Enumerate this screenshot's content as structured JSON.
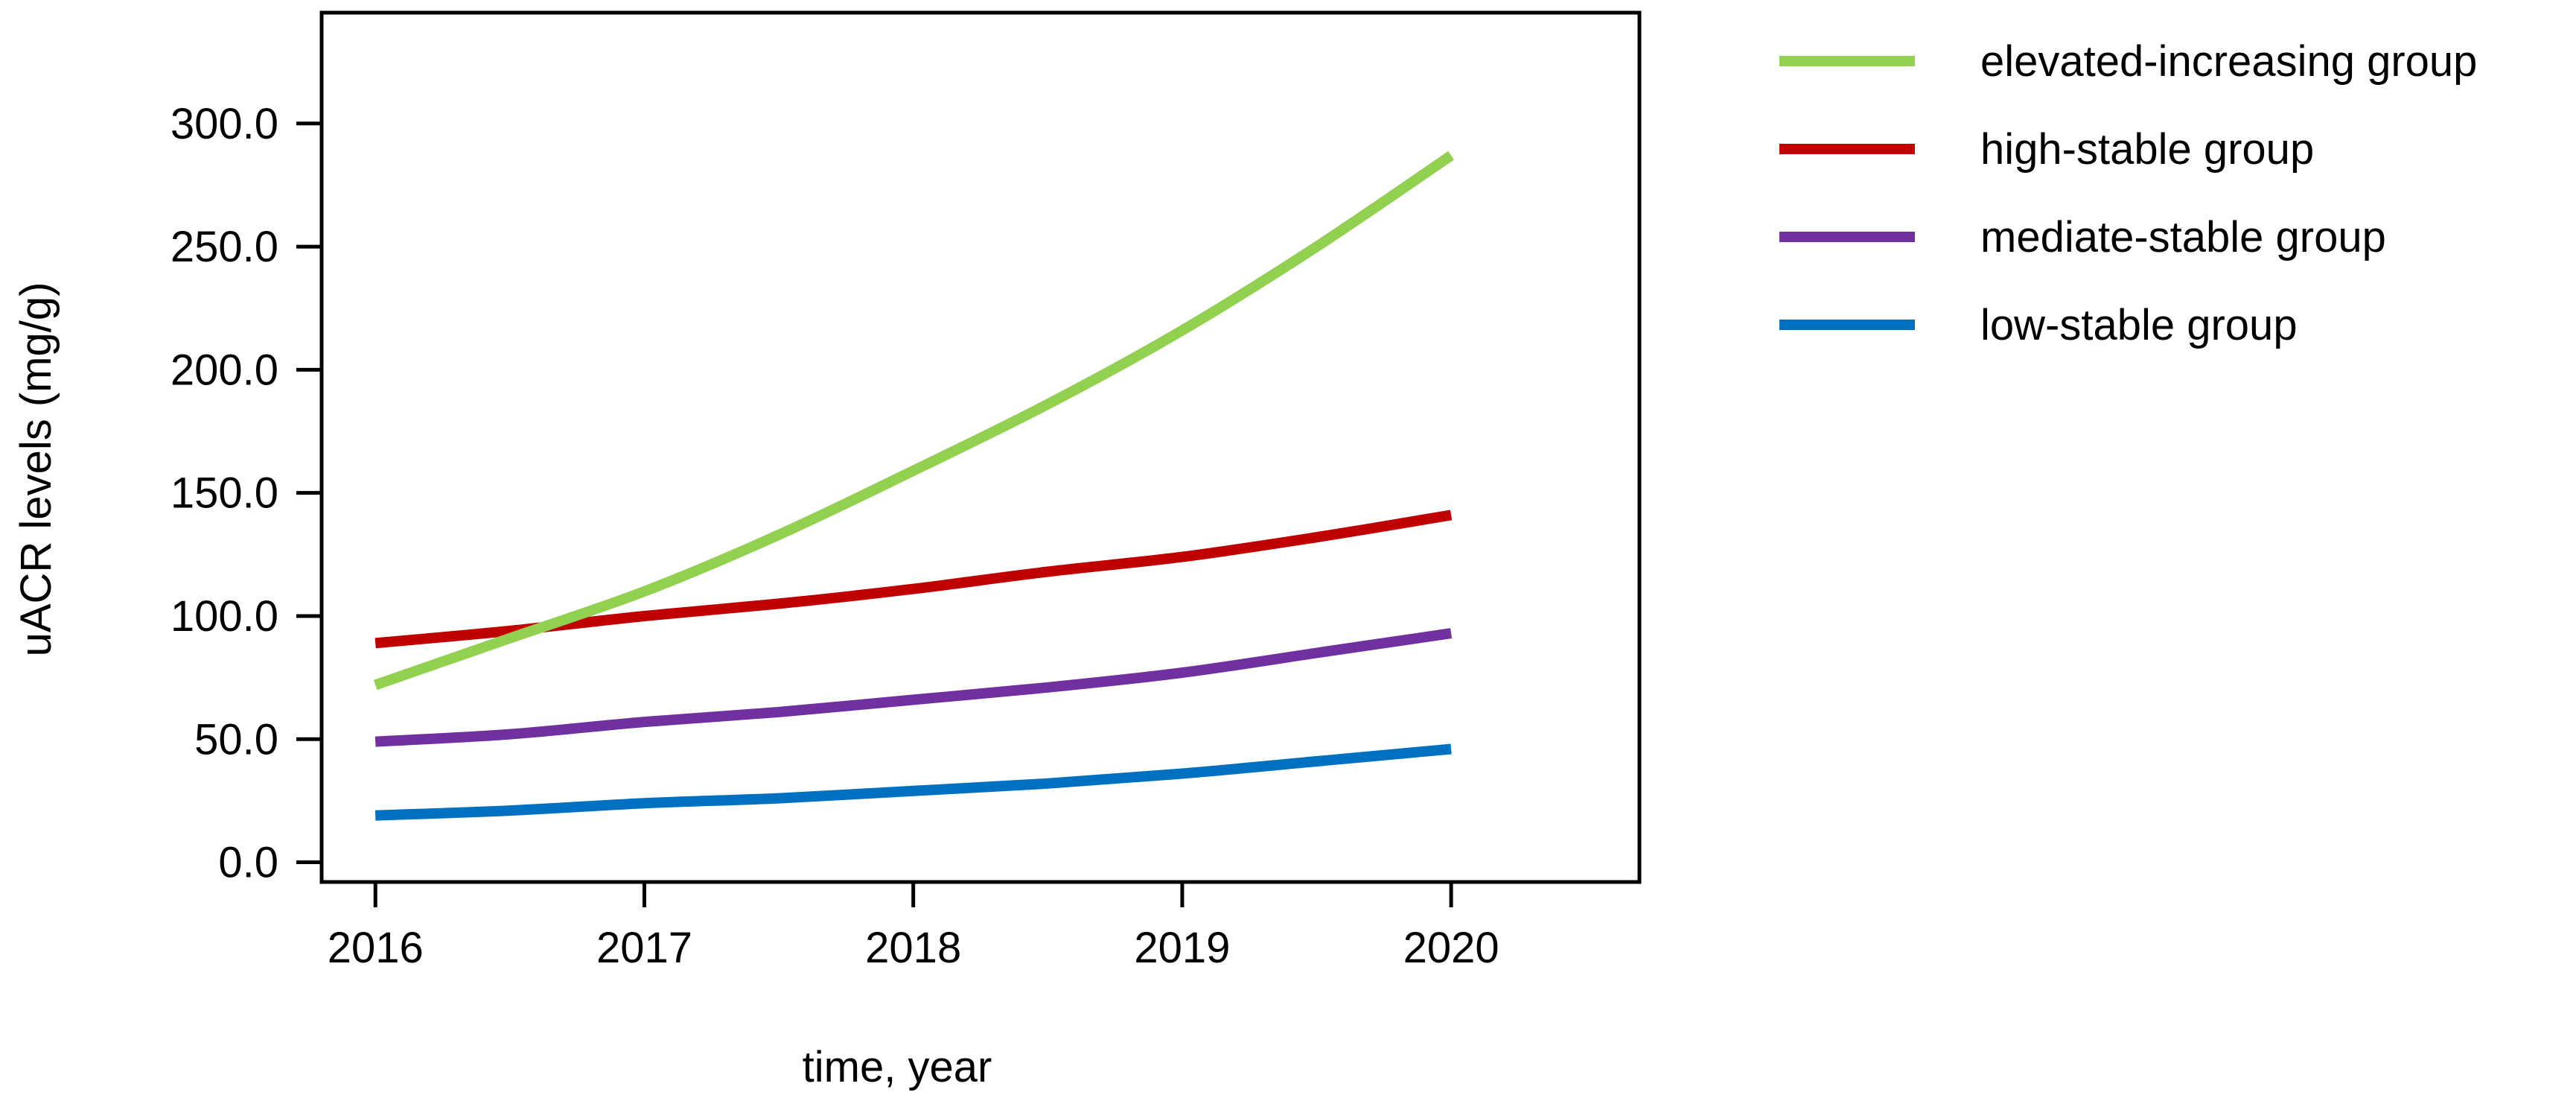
{
  "chart_data": {
    "type": "line",
    "title": "",
    "xlabel": "time, year",
    "ylabel": "uACR levels (mg/g)",
    "x": [
      2016,
      2016.5,
      2017,
      2017.5,
      2018,
      2018.5,
      2019,
      2019.5,
      2020
    ],
    "xticks": [
      "2016",
      "2017",
      "2018",
      "2019",
      "2020"
    ],
    "yticks": [
      "0.0",
      "50.0",
      "100.0",
      "150.0",
      "200.0",
      "250.0",
      "300.0"
    ],
    "xlim": [
      2015.8,
      2020.7
    ],
    "ylim": [
      -8,
      345
    ],
    "grid": false,
    "legend_position": "right",
    "series": [
      {
        "name": "elevated-increasing group",
        "color": "#92d050",
        "values": [
          72,
          91,
          110,
          133,
          159,
          186,
          216,
          250,
          287
        ]
      },
      {
        "name": "high-stable group",
        "color": "#c00000",
        "values": [
          89,
          94,
          100,
          105,
          111,
          118,
          124,
          132,
          141
        ]
      },
      {
        "name": "mediate-stable group",
        "color": "#7030a0",
        "values": [
          49,
          52,
          57,
          61,
          66,
          71,
          77,
          85,
          93
        ]
      },
      {
        "name": "low-stable group",
        "color": "#0070c0",
        "values": [
          19,
          21,
          24,
          26,
          29,
          32,
          36,
          41,
          46
        ]
      }
    ]
  }
}
